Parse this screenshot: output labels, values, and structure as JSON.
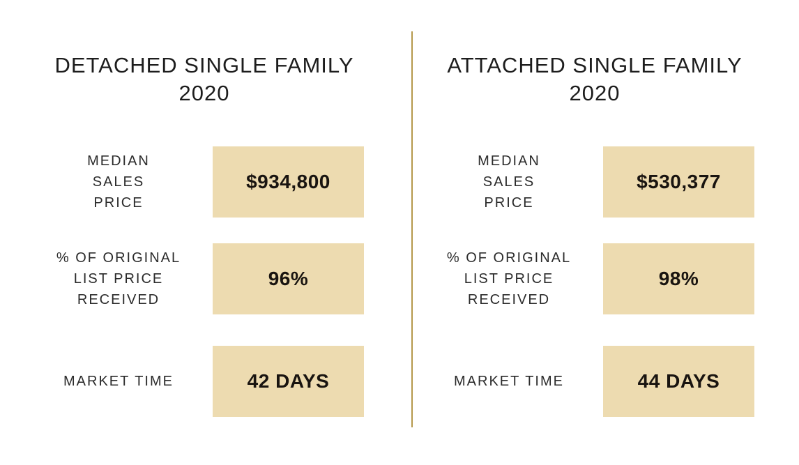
{
  "accent": {
    "box_background": "#EDDBB0",
    "divider_gold": "#B5984B",
    "value_text": "#191410",
    "label_text": "#2B2B2B"
  },
  "panels": [
    {
      "title": "DETACHED SINGLE FAMILY",
      "year": "2020",
      "rows": [
        {
          "label": "MEDIAN\nSALES\nPRICE",
          "value": "$934,800"
        },
        {
          "label": "% OF ORIGINAL\nLIST PRICE\nRECEIVED",
          "value": "96%"
        },
        {
          "label": "MARKET TIME",
          "value": "42 DAYS"
        }
      ]
    },
    {
      "title": "ATTACHED SINGLE FAMILY",
      "year": "2020",
      "rows": [
        {
          "label": "MEDIAN\nSALES\nPRICE",
          "value": "$530,377"
        },
        {
          "label": "% OF ORIGINAL\nLIST PRICE\nRECEIVED",
          "value": "98%"
        },
        {
          "label": "MARKET TIME",
          "value": "44 DAYS"
        }
      ]
    }
  ]
}
